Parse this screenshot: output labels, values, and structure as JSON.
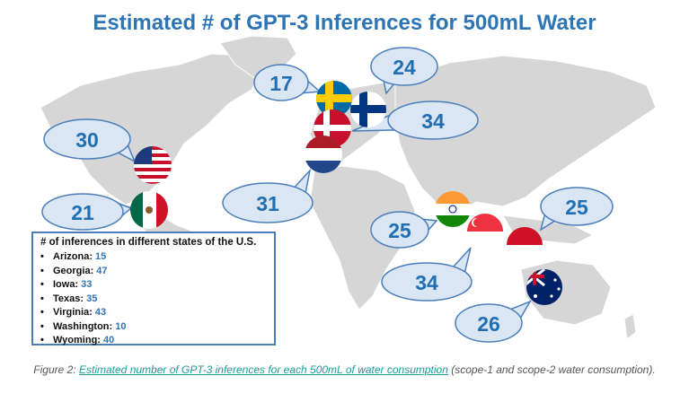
{
  "title": "Estimated # of GPT-3 Inferences for 500mL Water",
  "countries": [
    {
      "name": "USA",
      "value": "30"
    },
    {
      "name": "Mexico",
      "value": "21"
    },
    {
      "name": "Sweden",
      "value": "17"
    },
    {
      "name": "Finland",
      "value": "24"
    },
    {
      "name": "Denmark",
      "value": "34"
    },
    {
      "name": "Netherlands",
      "value": "31"
    },
    {
      "name": "India",
      "value": "25"
    },
    {
      "name": "Singapore",
      "value": "34"
    },
    {
      "name": "Indonesia",
      "value": "25"
    },
    {
      "name": "Australia",
      "value": "26"
    }
  ],
  "legend": {
    "title": "# of inferences in different states of the U.S.",
    "items": [
      {
        "state": "Arizona:",
        "value": "15"
      },
      {
        "state": "Georgia:",
        "value": "47"
      },
      {
        "state": "Iowa:",
        "value": "33"
      },
      {
        "state": "Texas:",
        "value": "35"
      },
      {
        "state": "Virginia:",
        "value": "43"
      },
      {
        "state": "Washington:",
        "value": "10"
      },
      {
        "state": "Wyoming:",
        "value": "40"
      }
    ]
  },
  "caption": {
    "prefix": "Figure 2: ",
    "link": "Estimated number of GPT-3 inferences for each 500mL of water consumption",
    "suffix": " (scope-1 and scope-2 water consumption)."
  },
  "colors": {
    "title": "#2e75b6",
    "bubble_fill": "#dbe6f4",
    "bubble_stroke": "#4a7ebb",
    "land": "#d4d4d4"
  }
}
